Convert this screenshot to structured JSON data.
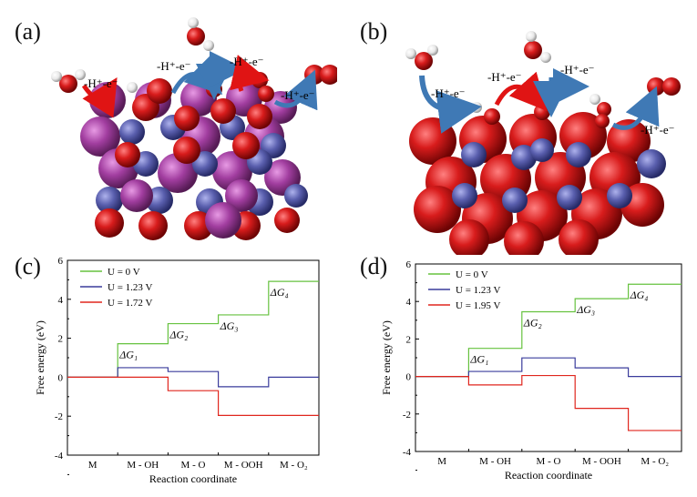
{
  "panels": {
    "a": {
      "label": "(a)",
      "steps": [
        "-H⁺-e⁻",
        "-H⁺-e⁻",
        "-H⁺-e⁻",
        "-H⁺-e⁻"
      ]
    },
    "b": {
      "label": "(b)",
      "steps": [
        "-H⁺-e⁻",
        "-H⁺-e⁻",
        "-H⁺-e⁻",
        "-H⁺-e⁻"
      ]
    },
    "c": {
      "label": "(c)"
    },
    "d": {
      "label": "(d)"
    }
  },
  "colors": {
    "oxygen": "#d81c1c",
    "metal_purple": "#a23ea0",
    "metal_blue": "#5a5fae",
    "hydrogen": "#f2f2f2",
    "arrow_red": "#e01414",
    "arrow_blue": "#3f79b5",
    "series_green": "#66c23f",
    "series_blue": "#3a3c9c",
    "series_red": "#e0261e"
  },
  "chart_data": [
    {
      "type": "line",
      "panel": "(c)",
      "xlabel": "Reaction coordinate",
      "ylabel": "Free energy (eV)",
      "ylim": [
        -4,
        6
      ],
      "yticks": [
        "-4",
        "-2",
        "0",
        "2",
        "4",
        "6"
      ],
      "categories": [
        "M",
        "M - OH",
        "M - O",
        "M - OOH",
        "M - O₂"
      ],
      "series": [
        {
          "name": "U = 0 V",
          "color": "#66c23f",
          "values": [
            0,
            1.72,
            2.75,
            3.2,
            4.92
          ]
        },
        {
          "name": "U = 1.23 V",
          "color": "#3a3c9c",
          "values": [
            0,
            0.49,
            0.29,
            -0.49,
            0
          ]
        },
        {
          "name": "U = 1.72 V",
          "color": "#e0261e",
          "values": [
            0,
            0,
            -0.69,
            -1.96,
            -1.96
          ]
        }
      ],
      "annotations": [
        "ΔG₁",
        "ΔG₂",
        "ΔG₃",
        "ΔG₄"
      ],
      "legend": "top-left"
    },
    {
      "type": "line",
      "panel": "(d)",
      "xlabel": "Reaction coordinate",
      "ylabel": "Free energy (eV)",
      "ylim": [
        -4,
        6
      ],
      "yticks": [
        "-4",
        "-2",
        "0",
        "2",
        "4",
        "6"
      ],
      "categories": [
        "M",
        "M - OH",
        "M - O",
        "M - OOH",
        "M - O₂"
      ],
      "series": [
        {
          "name": "U = 0 V",
          "color": "#66c23f",
          "values": [
            0,
            1.5,
            3.45,
            4.15,
            4.92
          ]
        },
        {
          "name": "U = 1.23 V",
          "color": "#3a3c9c",
          "values": [
            0,
            0.27,
            0.99,
            0.46,
            0
          ]
        },
        {
          "name": "U = 1.95 V",
          "color": "#e0261e",
          "values": [
            0,
            -0.45,
            0.05,
            -1.7,
            -2.88
          ]
        }
      ],
      "annotations": [
        "ΔG₁",
        "ΔG₂",
        "ΔG₃",
        "ΔG₄"
      ],
      "legend": "top-left"
    }
  ]
}
